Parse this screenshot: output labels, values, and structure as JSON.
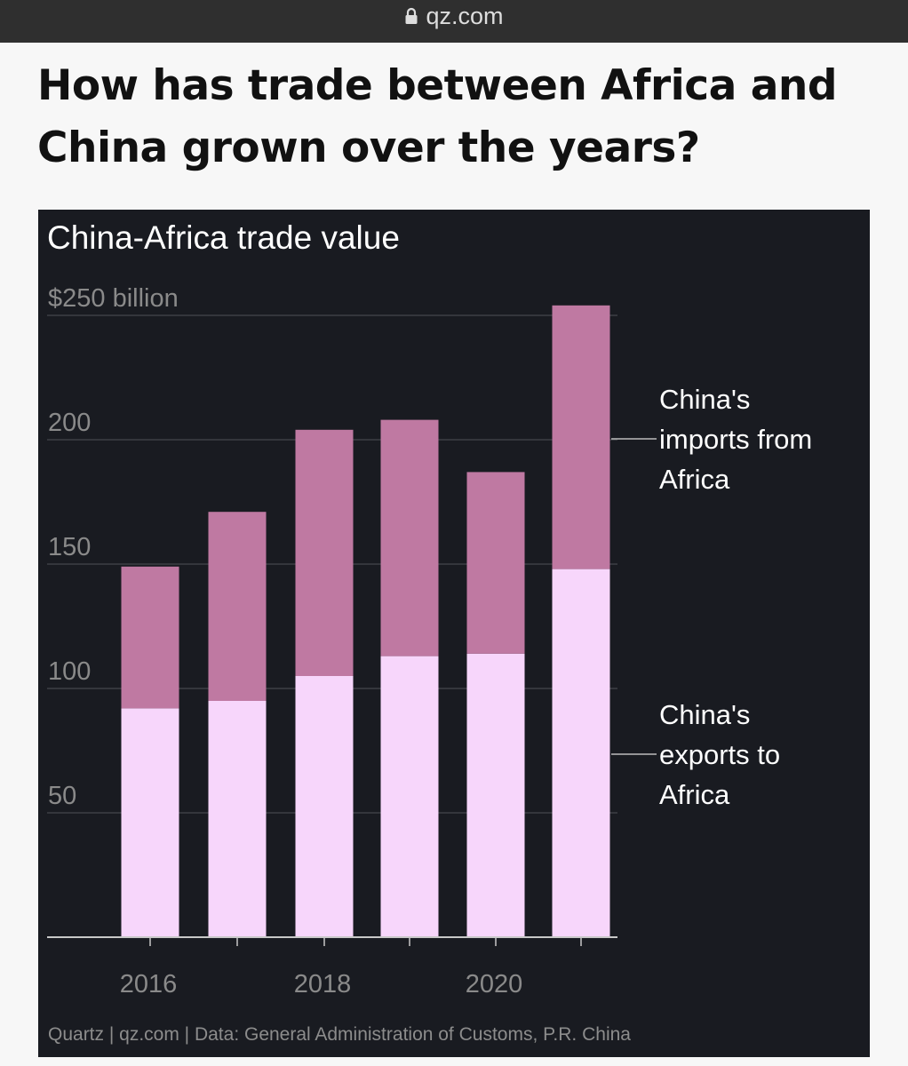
{
  "browser": {
    "url": "qz.com",
    "lock_icon": "lock-icon"
  },
  "article": {
    "headline_line1": "How has trade between Africa and",
    "headline_line2": "China grown over the years?"
  },
  "chart_data": {
    "type": "bar",
    "stacked": true,
    "title": "China-Africa trade value",
    "x": [
      2016,
      2017,
      2018,
      2019,
      2020,
      2021
    ],
    "x_tick_labels": [
      "2016",
      "2018",
      "2020"
    ],
    "y_tick_labels": [
      "$250 billion",
      "200",
      "150",
      "100",
      "50"
    ],
    "ylim": [
      0,
      250
    ],
    "grid": true,
    "series": [
      {
        "name": "China's exports to Africa",
        "values": [
          92,
          95,
          105,
          113,
          114,
          148
        ],
        "color": "#f7d6fb"
      },
      {
        "name": "China's imports from Africa",
        "values": [
          57,
          76,
          99,
          95,
          73,
          106
        ],
        "color": "#bf79a2"
      }
    ],
    "series_labels": [
      [
        "China's",
        "exports to",
        "Africa"
      ],
      [
        "China's",
        "imports from",
        "Africa"
      ]
    ],
    "source": "Quartz | qz.com | Data: General Administration of Customs, P.R. China",
    "background": "#191b21",
    "gridline_color": "#3d3f45",
    "tick_label_color": "#8a8a8a"
  }
}
